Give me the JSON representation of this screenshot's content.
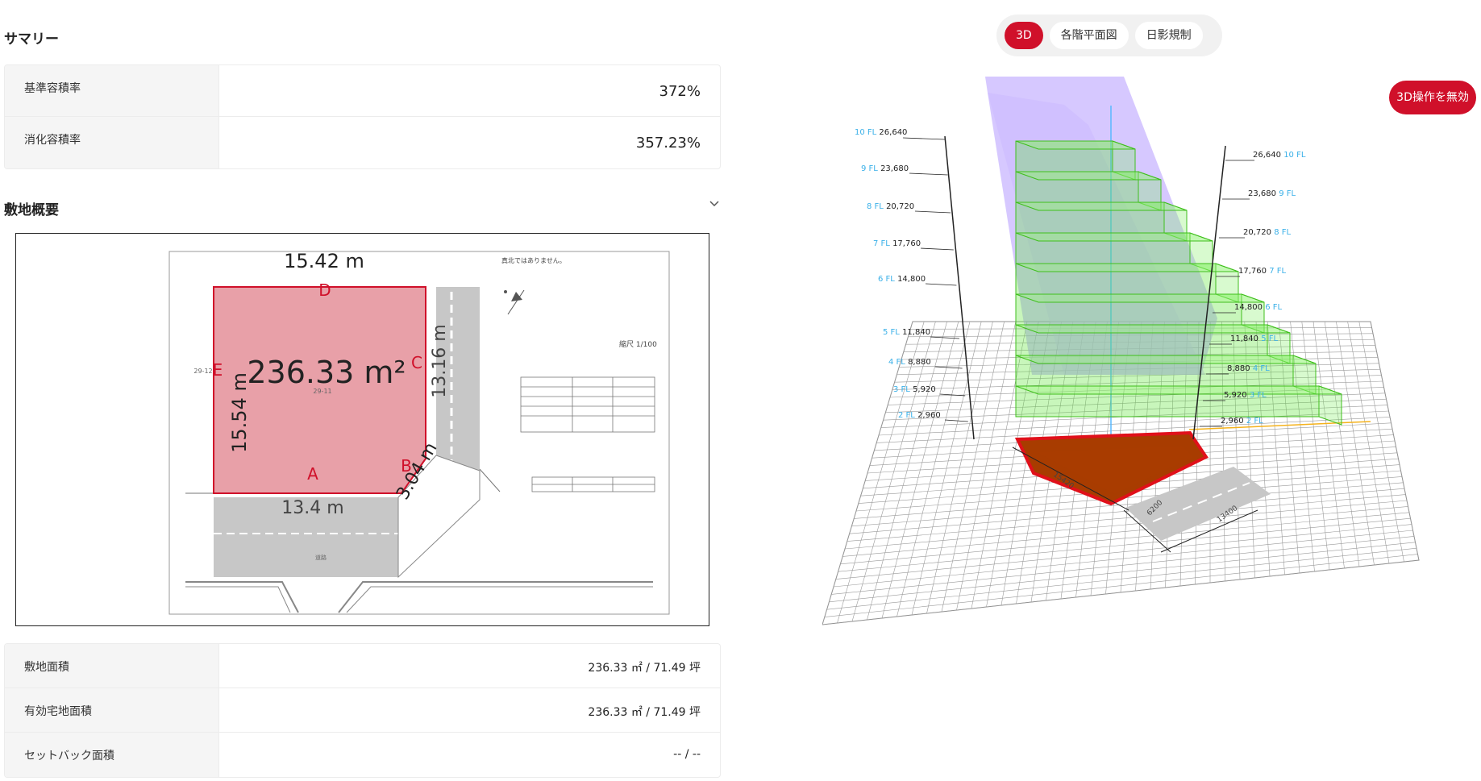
{
  "summary": {
    "title": "サマリー",
    "rows": [
      {
        "label": "基準容積率",
        "value": "372%"
      },
      {
        "label": "消化容積率",
        "value": "357.23%"
      }
    ]
  },
  "site": {
    "title": "敷地概要",
    "collapse_icon": "chevron-down-icon",
    "rows": [
      {
        "label": "敷地面積",
        "value": "236.33 ㎡ / 71.49 坪"
      },
      {
        "label": "有効宅地面積",
        "value": "236.33 ㎡ / 71.49 坪"
      },
      {
        "label": "セットバック面積",
        "value": "-- / --"
      }
    ]
  },
  "plan": {
    "area": "236.33 m²",
    "edge_top": "15.42 m",
    "edge_left": "15.54 m",
    "edge_right": "13.16 m",
    "edge_bottom": "13.4 m",
    "edge_diag": "3.04 m",
    "point_a": "A",
    "point_b": "B",
    "point_c": "C",
    "point_d": "D",
    "point_e": "E",
    "scale_note": "縮尺 1/100",
    "north_note": "真北ではありません。",
    "parcel_main": "29-11",
    "parcel_left": "29-12",
    "road_label": "道路"
  },
  "tabs": [
    {
      "label": "3D",
      "active": true
    },
    {
      "label": "各階平面図",
      "active": false
    },
    {
      "label": "日影規制",
      "active": false
    }
  ],
  "viewer": {
    "disable_button": "3D操作を無効",
    "colors": {
      "accent": "#d0102a",
      "volume": "#62e63c",
      "envelope": "#b59bff",
      "base": "#a83c00",
      "floor_label": "#3ab0e8"
    },
    "left_floors": [
      {
        "fl": "10 FL",
        "h": "26,640"
      },
      {
        "fl": "9 FL",
        "h": "23,680"
      },
      {
        "fl": "8 FL",
        "h": "20,720"
      },
      {
        "fl": "7 FL",
        "h": "17,760"
      },
      {
        "fl": "6 FL",
        "h": "14,800"
      },
      {
        "fl": "5 FL",
        "h": "11,840"
      },
      {
        "fl": "4 FL",
        "h": "8,880"
      },
      {
        "fl": "3 FL",
        "h": "5,920"
      },
      {
        "fl": "2 FL",
        "h": "2,960"
      }
    ],
    "right_floors": [
      {
        "fl": "10 FL",
        "h": "26,640"
      },
      {
        "fl": "9 FL",
        "h": "23,680"
      },
      {
        "fl": "8 FL",
        "h": "20,720"
      },
      {
        "fl": "7 FL",
        "h": "17,760"
      },
      {
        "fl": "6 FL",
        "h": "14,800"
      },
      {
        "fl": "5 FL",
        "h": "11,840"
      },
      {
        "fl": "4 FL",
        "h": "8,880"
      },
      {
        "fl": "3 FL",
        "h": "5,920"
      },
      {
        "fl": "2 FL",
        "h": "2,960"
      }
    ],
    "dim_front": "6200",
    "dim_side": "15420",
    "dim_road": "13400"
  }
}
